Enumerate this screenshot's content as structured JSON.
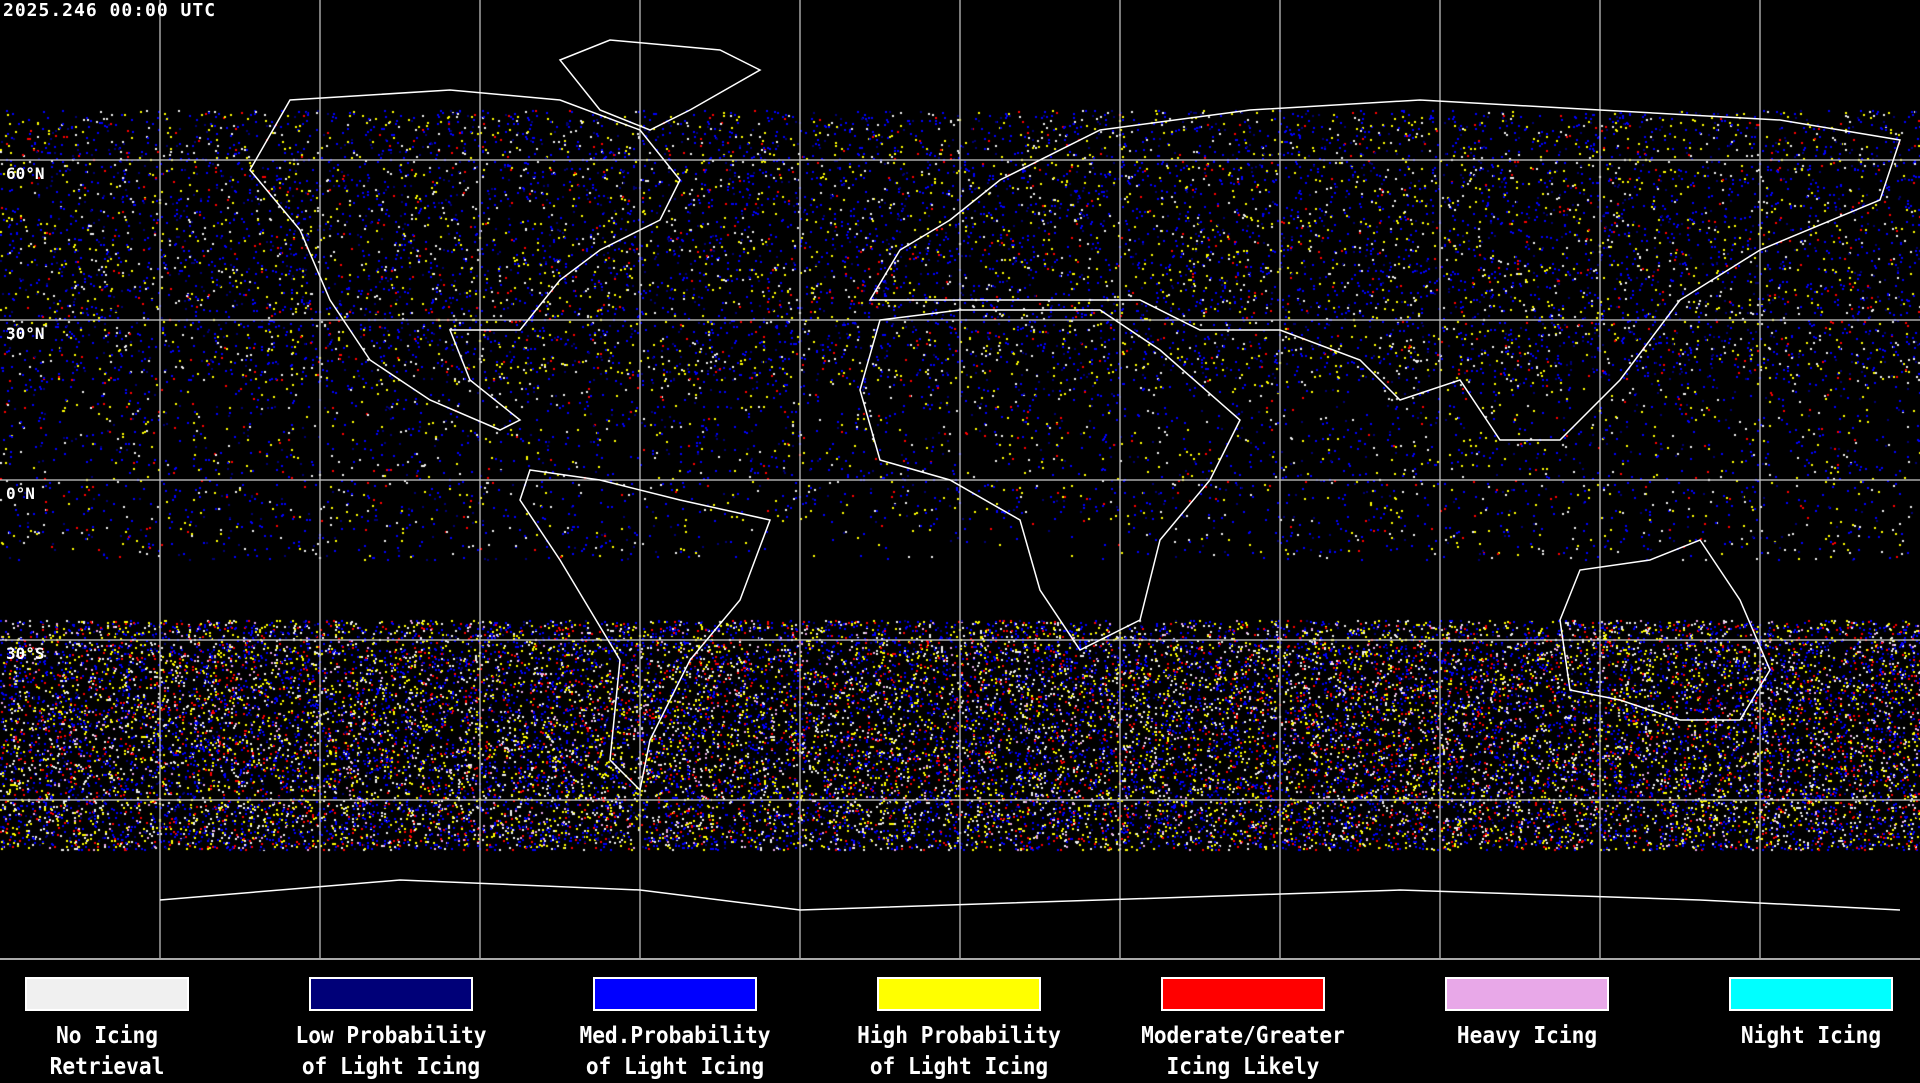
{
  "timestamp": "2025.246 00:00 UTC",
  "lat_labels": [
    "60°N",
    "30°N",
    "0°N",
    "30°S"
  ],
  "legend": [
    {
      "line1": "No Icing",
      "line2": "Retrieval",
      "color": "#f0f0f0"
    },
    {
      "line1": "Low Probability",
      "line2": "of Light Icing",
      "color": "#000078"
    },
    {
      "line1": "Med.Probability",
      "line2": "of Light Icing",
      "color": "#0000ff"
    },
    {
      "line1": "High Probability",
      "line2": "of Light Icing",
      "color": "#ffff00"
    },
    {
      "line1": "Moderate/Greater",
      "line2": "Icing Likely",
      "color": "#ff0000"
    },
    {
      "line1": "Heavy Icing",
      "line2": "",
      "color": "#e8a8e8"
    },
    {
      "line1": "Night Icing",
      "line2": "",
      "color": "#00ffff"
    }
  ]
}
